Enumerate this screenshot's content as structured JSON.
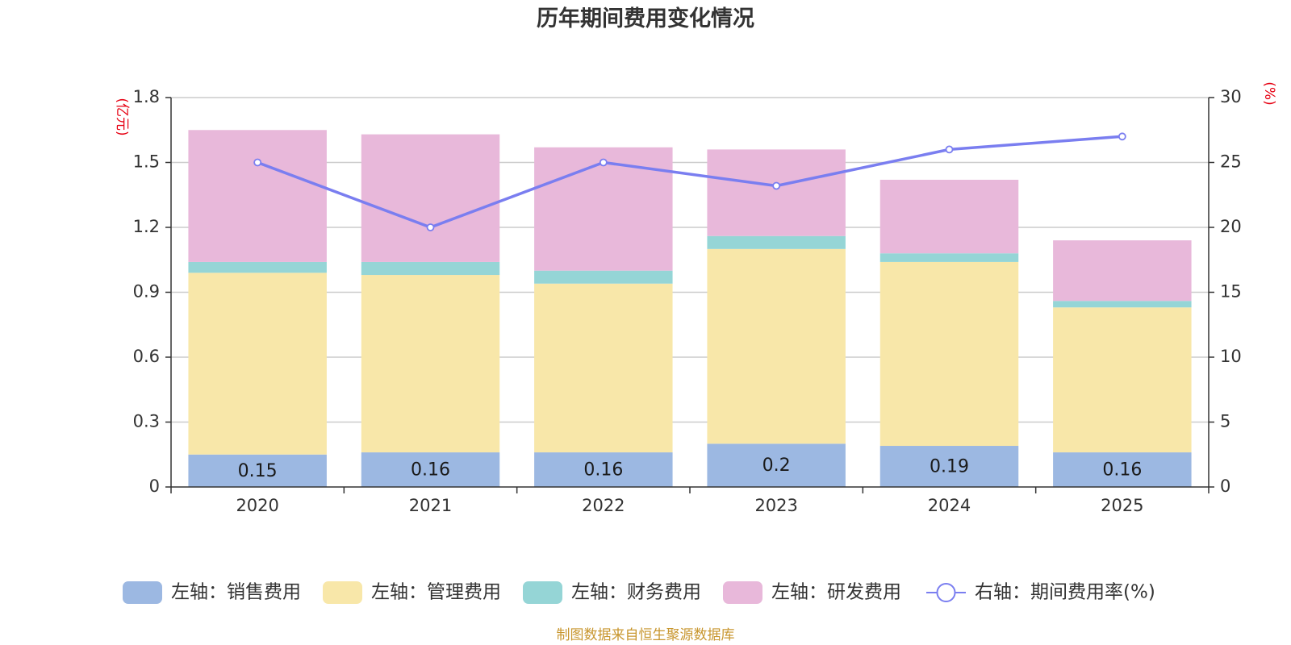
{
  "chart_data": {
    "type": "bar",
    "title": "历年期间费用变化情况",
    "left_unit": "(亿元)",
    "right_unit": "(%)",
    "categories": [
      "2020",
      "2021",
      "2022",
      "2023",
      "2024",
      "2025"
    ],
    "left_axis": {
      "min": 0,
      "max": 1.8,
      "ticks": [
        "0",
        "0.3",
        "0.6",
        "0.9",
        "1.2",
        "1.5",
        "1.8"
      ],
      "tick_values": [
        0,
        0.3,
        0.6,
        0.9,
        1.2,
        1.5,
        1.8
      ]
    },
    "right_axis": {
      "min": 0,
      "max": 30,
      "ticks": [
        "0",
        "5",
        "10",
        "15",
        "20",
        "25",
        "30"
      ],
      "tick_values": [
        0,
        5,
        10,
        15,
        20,
        25,
        30
      ]
    },
    "series": [
      {
        "name": "左轴：销售费用",
        "axis": "left",
        "kind": "bar",
        "color": "#9cb8e2",
        "values": [
          0.15,
          0.16,
          0.16,
          0.2,
          0.19,
          0.16
        ],
        "labels": [
          "0.15",
          "0.16",
          "0.16",
          "0.2",
          "0.19",
          "0.16"
        ]
      },
      {
        "name": "左轴：管理费用",
        "axis": "left",
        "kind": "bar",
        "color": "#f8e7a9",
        "values": [
          0.84,
          0.82,
          0.78,
          0.9,
          0.85,
          0.67
        ]
      },
      {
        "name": "左轴：财务费用",
        "axis": "left",
        "kind": "bar",
        "color": "#95d5d6",
        "values": [
          0.05,
          0.06,
          0.06,
          0.06,
          0.04,
          0.03
        ]
      },
      {
        "name": "左轴：研发费用",
        "axis": "left",
        "kind": "bar",
        "color": "#e8b8da",
        "values": [
          0.61,
          0.59,
          0.57,
          0.4,
          0.34,
          0.28
        ]
      },
      {
        "name": "右轴：期间费用率(%)",
        "axis": "right",
        "kind": "line",
        "color": "#7a7ef0",
        "values": [
          25.0,
          20.0,
          25.0,
          23.2,
          26.0,
          27.0
        ]
      }
    ],
    "grid": true,
    "legend_position": "bottom"
  },
  "source_note": "制图数据来自恒生聚源数据库"
}
